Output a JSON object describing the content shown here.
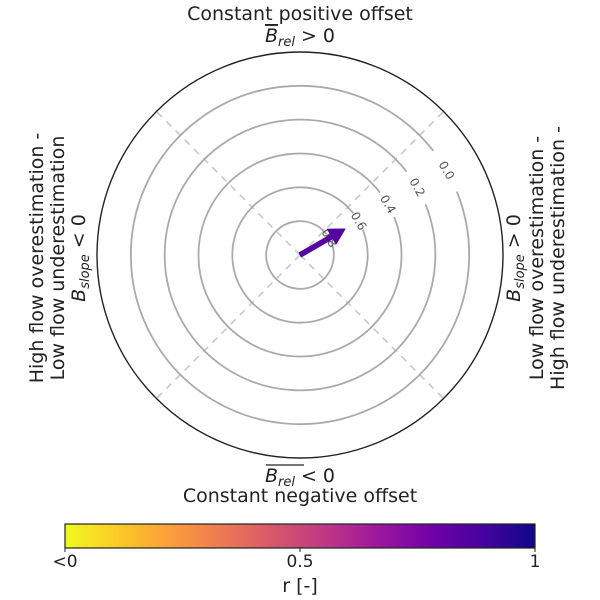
{
  "chart_data": {
    "type": "polar-arrow",
    "title_top_line1": "Constant positive offset",
    "title_top_sym": "B",
    "title_top_sub": "rel",
    "title_top_rel": "> 0",
    "title_bottom_line1": "Constant negative offset",
    "title_bottom_sym": "B",
    "title_bottom_sub": "rel",
    "title_bottom_rel": "< 0",
    "left_line1": "High flow overestimation -",
    "left_line2": "Low flow underestimation",
    "left_sym": "B",
    "left_sub": "slope",
    "left_rel": "< 0",
    "right_line1": "Low flow overestimation -",
    "right_line2": "High flow underestimation -",
    "right_sym": "B",
    "right_sub": "slope",
    "right_rel": "> 0",
    "rings": [
      {
        "value": 0.8,
        "label": "0.8"
      },
      {
        "value": 0.6,
        "label": "0.6"
      },
      {
        "value": 0.4,
        "label": "0.4"
      },
      {
        "value": 0.2,
        "label": "0.2"
      },
      {
        "value": 0.0,
        "label": "0.0"
      }
    ],
    "radius_range": [
      1.0,
      -0.2
    ],
    "gridlines_dashed_at_deg": [
      45,
      135,
      225,
      315
    ],
    "arrow": {
      "angle_deg": 30,
      "magnitude": 0.69,
      "r_value": 0.85
    },
    "colorbar": {
      "label": "r [-]",
      "ticks": [
        {
          "value": 0.0,
          "label": "<0"
        },
        {
          "value": 0.5,
          "label": "0.5"
        },
        {
          "value": 1.0,
          "label": "1"
        }
      ],
      "colormap": "plasma-reversed",
      "colors": [
        "#f0f921",
        "#fdca26",
        "#fb9f3a",
        "#ed7953",
        "#d8576b",
        "#bd3786",
        "#9c179e",
        "#7201a8",
        "#46039f",
        "#0d0887"
      ]
    }
  }
}
